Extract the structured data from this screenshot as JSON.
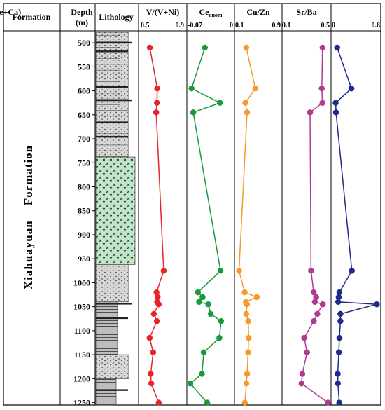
{
  "chart_data": {
    "type": "line",
    "headers": {
      "formation": "Formation",
      "depth": "Depth",
      "depth_unit": "(m)",
      "lithology": "Lithology"
    },
    "formation_name": "Xiahuayuan    Formation",
    "depth_ticks": [
      500,
      550,
      600,
      650,
      700,
      750,
      800,
      850,
      900,
      950,
      1000,
      1050,
      1100,
      1150,
      1200,
      1250
    ],
    "depth_range": [
      475,
      1255
    ],
    "depths": [
      510,
      595,
      625,
      645,
      975,
      1020,
      1030,
      1040,
      1045,
      1065,
      1080,
      1115,
      1145,
      1190,
      1210,
      1250
    ],
    "panels": [
      {
        "title": "V/(V+Ni)",
        "ticks": [
          "0.5",
          "0.9"
        ],
        "range": [
          0.5,
          0.9
        ],
        "color": "#e8242a",
        "values": [
          0.566,
          0.643,
          0.64,
          0.632,
          0.71,
          0.636,
          0.647,
          0.642,
          0.658,
          0.608,
          0.639,
          0.564,
          0.601,
          0.575,
          0.581,
          0.659
        ]
      },
      {
        "title": "Ce",
        "title_sub": "anom",
        "ticks": [
          "-0.07",
          "0"
        ],
        "range": [
          -0.07,
          0
        ],
        "color": "#1a9a3c",
        "values": [
          -0.045,
          -0.068,
          -0.019,
          -0.065,
          -0.018,
          -0.057,
          -0.049,
          -0.055,
          -0.039,
          -0.035,
          -0.017,
          -0.02,
          -0.047,
          -0.05,
          -0.07,
          -0.041
        ]
      },
      {
        "title": "Cu/Zn",
        "ticks": [
          "0.1",
          "0.9"
        ],
        "range": [
          0.1,
          0.9
        ],
        "color": "#f59a2b",
        "values": [
          0.263,
          0.444,
          0.245,
          0.279,
          0.121,
          0.232,
          0.47,
          0.255,
          0.276,
          0.263,
          0.303,
          0.311,
          0.299,
          0.281,
          0.266,
          0.236
        ]
      },
      {
        "title": "Sr/Ba",
        "ticks": [
          "0.1",
          "0.5"
        ],
        "range": [
          0.1,
          0.5
        ],
        "color": "#b03a8e",
        "values": [
          0.453,
          0.446,
          0.452,
          0.336,
          0.345,
          0.37,
          0.393,
          0.381,
          0.455,
          0.404,
          0.371,
          0.281,
          0.308,
          0.263,
          0.256,
          0.503
        ]
      },
      {
        "title": "Ca/(Fe+Ca)",
        "ticks": [
          "0",
          "0.6"
        ],
        "range": [
          0,
          0.6
        ],
        "color": "#1f2a8a",
        "values": [
          0.036,
          0.233,
          0.015,
          0.02,
          0.239,
          0.067,
          0.057,
          0.05,
          0.584,
          0.081,
          0.081,
          0.067,
          0.059,
          0.044,
          0.046,
          0.065
        ]
      }
    ],
    "lithology_legend": []
  }
}
